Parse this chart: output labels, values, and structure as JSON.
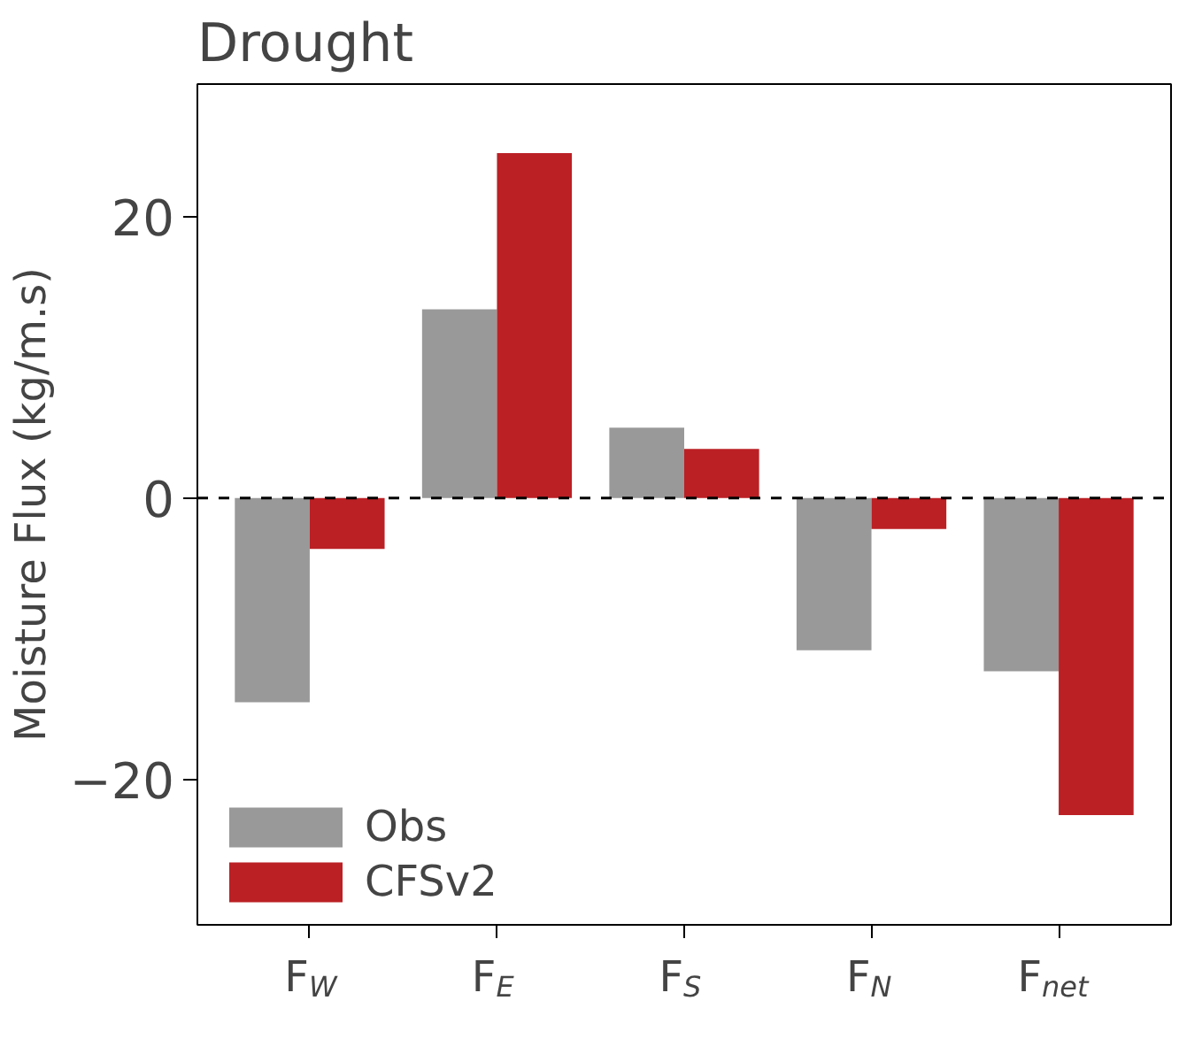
{
  "chart_data": {
    "type": "bar",
    "title": "Drought",
    "ylabel": "Moisture Flux (kg/m.s)",
    "categories": [
      "F$_{W}$",
      "F$_{E}$",
      "F$_{S}$",
      "F$_{N}$",
      "F$_{net}$"
    ],
    "series": [
      {
        "name": "Obs",
        "color": "#999999",
        "values": [
          -14.5,
          13.4,
          5.0,
          -10.8,
          -12.3
        ]
      },
      {
        "name": "CFSv2",
        "color": "#bb2025",
        "values": [
          -3.6,
          24.5,
          3.5,
          -2.2,
          -22.5
        ]
      }
    ],
    "ylim": [
      -30.3,
      29.4
    ],
    "yticks": [
      {
        "value": -20,
        "label": "−20"
      },
      0,
      20
    ],
    "ref_lines": [
      {
        "axis": "y",
        "value": 0,
        "label": null,
        "color": "#000000",
        "line_style": "dashed"
      }
    ],
    "grid": false,
    "legend": "bottom left"
  }
}
